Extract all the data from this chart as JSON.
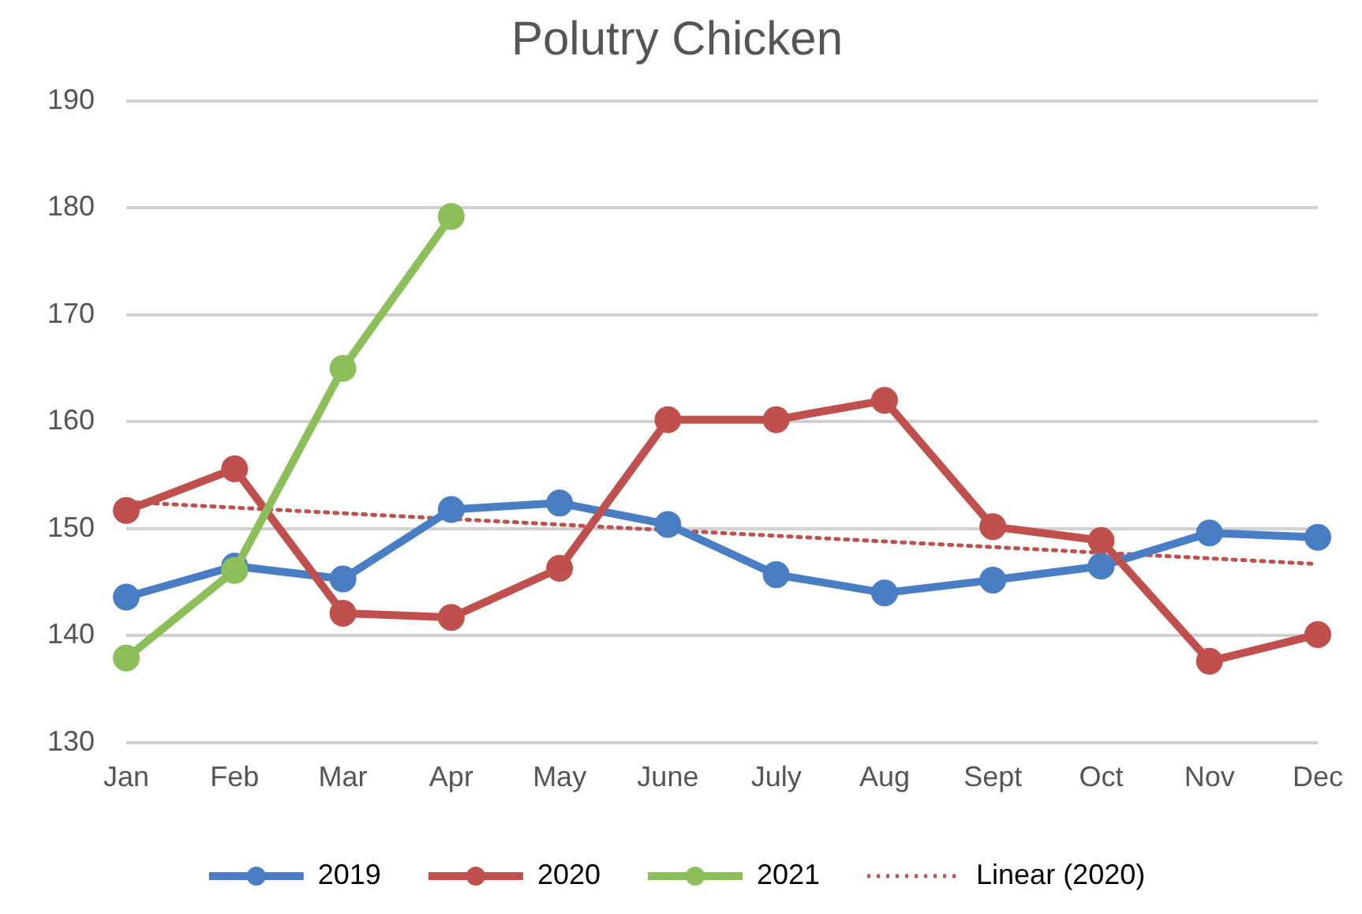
{
  "chart_data": {
    "type": "line",
    "title": "Polutry Chicken",
    "categories": [
      "Jan",
      "Feb",
      "Mar",
      "Apr",
      "May",
      "June",
      "July",
      "Aug",
      "Sept",
      "Oct",
      "Nov",
      "Dec"
    ],
    "series": [
      {
        "name": "2019",
        "color": "#4a7ec4",
        "values": [
          143.6,
          146.5,
          145.3,
          151.8,
          152.4,
          150.4,
          145.7,
          144.0,
          145.2,
          146.5,
          149.6,
          149.2
        ]
      },
      {
        "name": "2020",
        "color": "#c0504d",
        "values": [
          151.7,
          155.6,
          142.1,
          141.7,
          146.3,
          160.2,
          160.2,
          162.0,
          150.2,
          148.9,
          137.6,
          140.1
        ]
      },
      {
        "name": "2021",
        "color": "#8cbf5a",
        "values": [
          137.9,
          146.1,
          165.0,
          179.2,
          null,
          null,
          null,
          null,
          null,
          null,
          null,
          null
        ]
      },
      {
        "name": "Linear (2020)",
        "color": "#c0504d",
        "x": [
          "Jan",
          "Dec"
        ],
        "values": [
          152.5,
          146.7
        ],
        "line_style": "dotted",
        "marker": "none"
      }
    ],
    "ylim": [
      130,
      190
    ],
    "yticks": [
      130,
      140,
      150,
      160,
      170,
      180,
      190
    ],
    "grid": "y",
    "legend": "bottom",
    "marker": "circle",
    "line_style": "solid"
  }
}
